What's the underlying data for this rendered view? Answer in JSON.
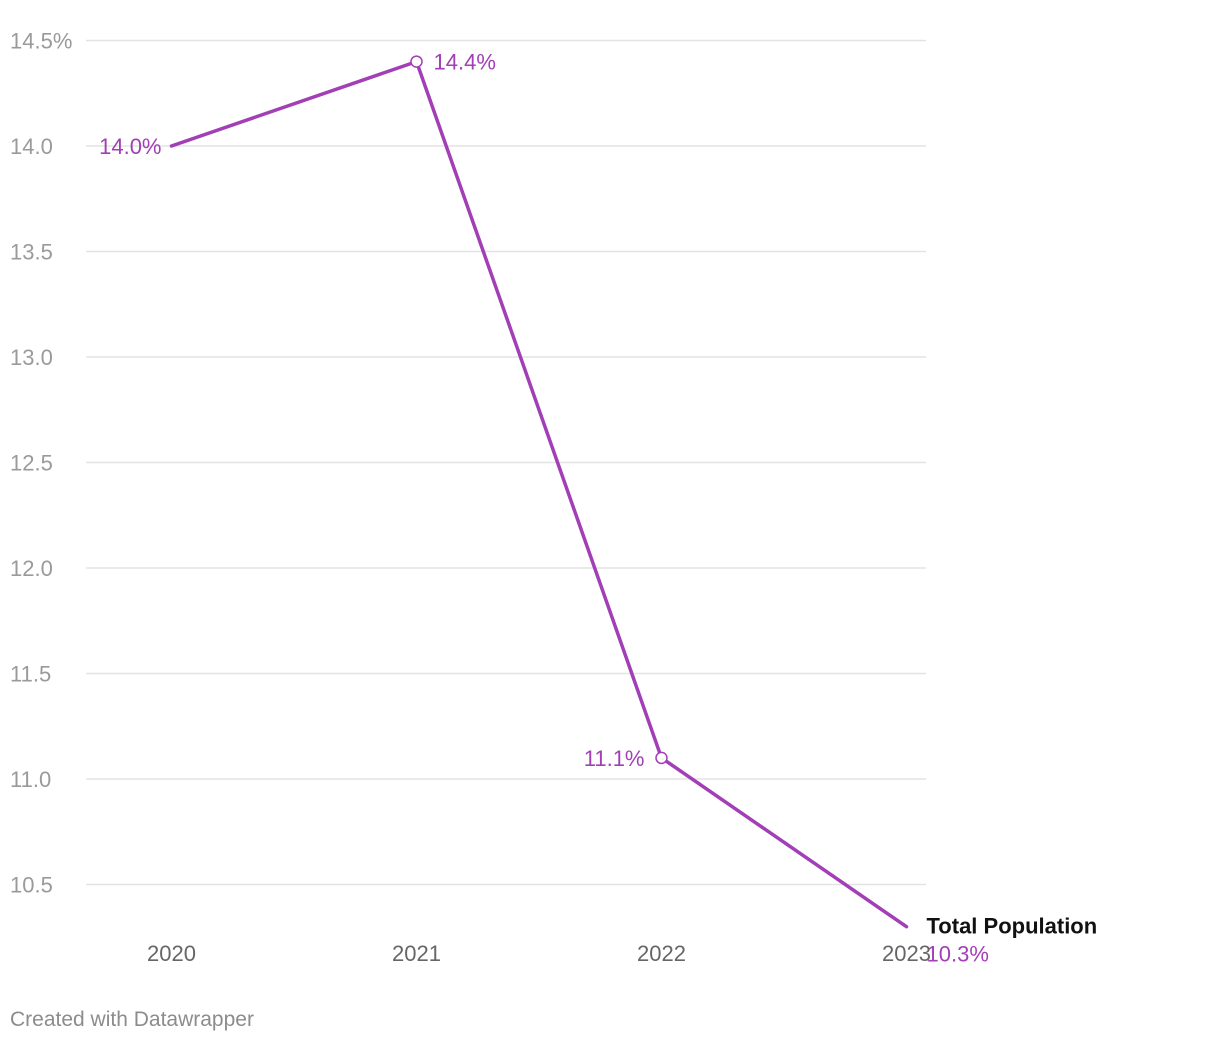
{
  "chart_data": {
    "type": "line",
    "title": "",
    "xlabel": "",
    "ylabel": "",
    "categories": [
      "2020",
      "2021",
      "2022",
      "2023"
    ],
    "series": [
      {
        "name": "Total Population",
        "values": [
          14.0,
          14.4,
          11.1,
          10.3
        ],
        "labels": [
          "14.0%",
          "14.4%",
          "11.1%",
          "10.3%"
        ],
        "color": "#a23fb6"
      }
    ],
    "y_ticks": [
      {
        "value": 14.5,
        "label": "14.5%"
      },
      {
        "value": 14.0,
        "label": "14.0"
      },
      {
        "value": 13.5,
        "label": "13.5"
      },
      {
        "value": 13.0,
        "label": "13.0"
      },
      {
        "value": 12.5,
        "label": "12.5"
      },
      {
        "value": 12.0,
        "label": "12.0"
      },
      {
        "value": 11.5,
        "label": "11.5"
      },
      {
        "value": 11.0,
        "label": "11.0"
      },
      {
        "value": 10.5,
        "label": "10.5"
      }
    ],
    "ylim": [
      10.3,
      14.5
    ],
    "grid": true,
    "legend": "inline label at end of line"
  },
  "footer": {
    "credit": "Created with Datawrapper"
  }
}
